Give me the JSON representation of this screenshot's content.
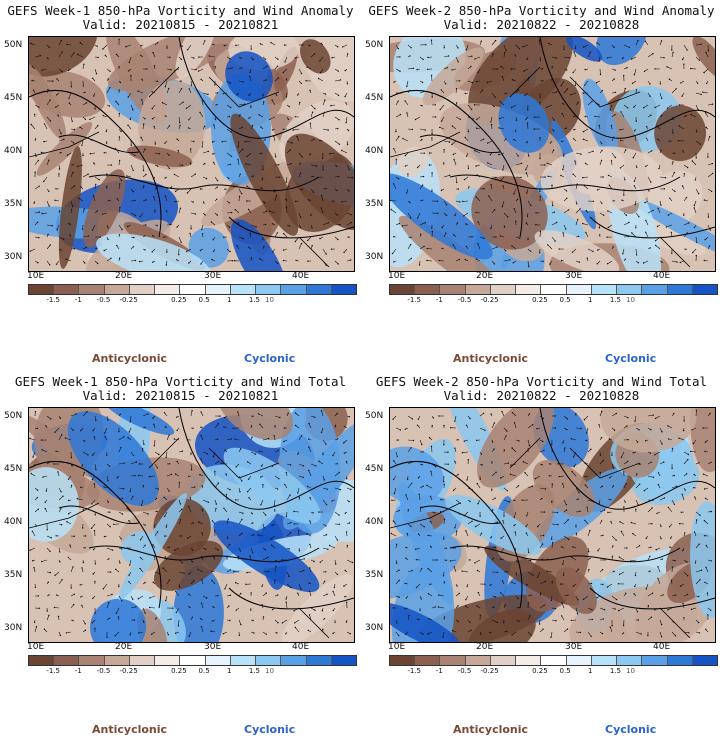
{
  "panels": [
    {
      "title": "GEFS Week-1 850-hPa Vorticity and Wind Anomaly",
      "valid": "Valid: 20210815 - 20210821"
    },
    {
      "title": "GEFS Week-2 850-hPa Vorticity and Wind Anomaly",
      "valid": "Valid: 20210822 - 20210828"
    },
    {
      "title": "GEFS Week-1 850-hPa Vorticity and Wind Total",
      "valid": "Valid: 20210815 - 20210821"
    },
    {
      "title": "GEFS Week-2 850-hPa Vorticity and Wind Total",
      "valid": "Valid: 20210822 - 20210828"
    }
  ],
  "lat_labels": [
    "50N",
    "45N",
    "40N",
    "35N",
    "30N"
  ],
  "lon_labels": [
    "10E",
    "20E",
    "30E",
    "40E"
  ],
  "colorbar": {
    "labels": [
      "-1.5",
      "-1",
      "-0.5",
      "-0.25",
      "0.25",
      "0.5",
      "1",
      "1.5"
    ],
    "scale_note": "10",
    "colors": [
      "#6b4433",
      "#8c6050",
      "#a88272",
      "#c6a898",
      "#e2d0c6",
      "#f4ece6",
      "#ffffff",
      "#e6f3fc",
      "#b8e2f8",
      "#8cc8f0",
      "#5aa0e6",
      "#2e78d8",
      "#1454c4"
    ]
  },
  "legend": {
    "anticyclonic": "Anticyclonic",
    "cyclonic": "Cyclonic"
  }
}
